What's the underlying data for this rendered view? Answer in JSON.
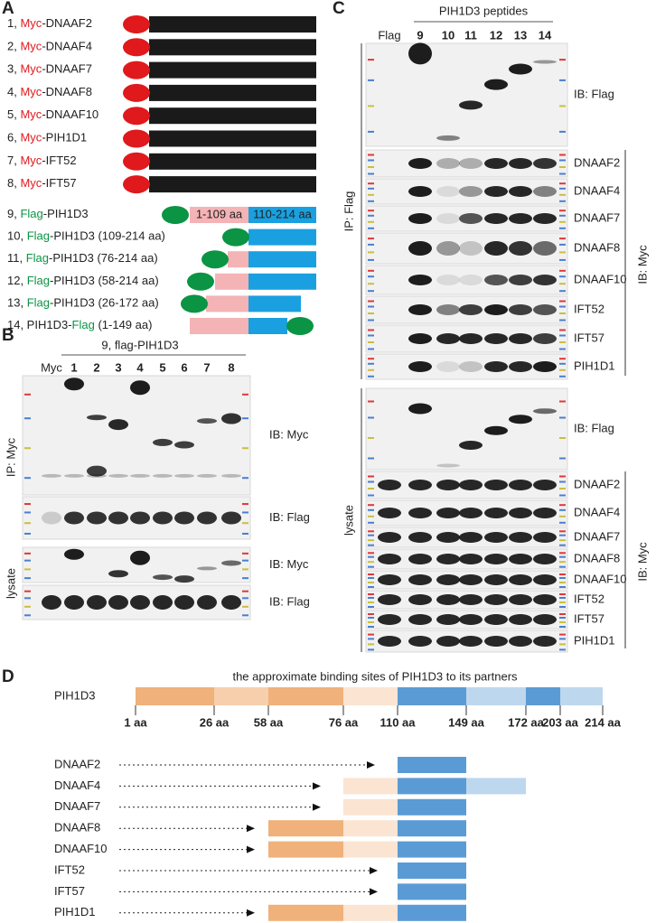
{
  "panel_a": {
    "label": "A",
    "myc_constructs": [
      {
        "number": "1, ",
        "tag": "Myc",
        "name": "-DNAAF2"
      },
      {
        "number": "2, ",
        "tag": "Myc",
        "name": "-DNAAF4"
      },
      {
        "number": "3, ",
        "tag": "Myc",
        "name": "-DNAAF7"
      },
      {
        "number": "4, ",
        "tag": "Myc",
        "name": "-DNAAF8"
      },
      {
        "number": "5, ",
        "tag": "Myc",
        "name": "-DNAAF10"
      },
      {
        "number": "6, ",
        "tag": "Myc",
        "name": "-PIH1D1"
      },
      {
        "number": "7, ",
        "tag": "Myc",
        "name": "-IFT52"
      },
      {
        "number": "8, ",
        "tag": "Myc",
        "name": "-IFT57"
      }
    ],
    "flag_constructs": [
      {
        "number": "9, ",
        "tag": "Flag",
        "name": "-PIH1D3",
        "segments": [
          "1-109 aa",
          "110-214 aa"
        ]
      },
      {
        "number": "10, ",
        "tag": "Flag",
        "name": "-PIH1D3 (109-214 aa)"
      },
      {
        "number": "11, ",
        "tag": "Flag",
        "name": "-PIH1D3 (76-214 aa)"
      },
      {
        "number": "12, ",
        "tag": "Flag",
        "name": "-PIH1D3 (58-214 aa)"
      },
      {
        "number": "13, ",
        "tag": "Flag",
        "name": "-PIH1D3 (26-172 aa)"
      },
      {
        "number": "14, PIH1D3-",
        "tag": "Flag",
        "name": " (1-149 aa)"
      }
    ]
  },
  "panel_b": {
    "label": "B",
    "header": "9, flag-PIH1D3",
    "lanes": [
      "Myc",
      "1",
      "2",
      "3",
      "4",
      "5",
      "6",
      "7",
      "8"
    ],
    "sections": [
      {
        "label": "IP: Myc",
        "blots": [
          "IB: Myc",
          "IB: Flag"
        ]
      },
      {
        "label": "lysate",
        "blots": [
          "IB: Myc",
          "IB: Flag"
        ]
      }
    ]
  },
  "panel_c": {
    "label": "C",
    "header": "PIH1D3 peptides",
    "lanes": [
      "Flag",
      "9",
      "10",
      "11",
      "12",
      "13",
      "14"
    ],
    "sections": [
      {
        "label": "IP: Flag",
        "bracket": "IB: Myc",
        "blots": [
          "IB: Flag",
          "DNAAF2",
          "DNAAF4",
          "DNAAF7",
          "DNAAF8",
          "DNAAF10",
          "IFT52",
          "IFT57",
          "PIH1D1"
        ]
      },
      {
        "label": "lysate",
        "bracket": "IB: Myc",
        "blots": [
          "IB: Flag",
          "DNAAF2",
          "DNAAF4",
          "DNAAF7",
          "DNAAF8",
          "DNAAF10",
          "IFT52",
          "IFT57",
          "PIH1D1"
        ]
      }
    ]
  },
  "panel_d": {
    "label": "D",
    "title": "the approximate binding sites of PIH1D3 to its partners",
    "protein": "PIH1D3",
    "ticks": [
      "1 aa",
      "26 aa",
      "58 aa",
      "76 aa",
      "110 aa",
      "149 aa",
      "172 aa",
      "203 aa",
      "214 aa"
    ],
    "partners": [
      "DNAAF2",
      "DNAAF4",
      "DNAAF7",
      "DNAAF8",
      "DNAAF10",
      "IFT52",
      "IFT57",
      "PIH1D1"
    ]
  }
}
